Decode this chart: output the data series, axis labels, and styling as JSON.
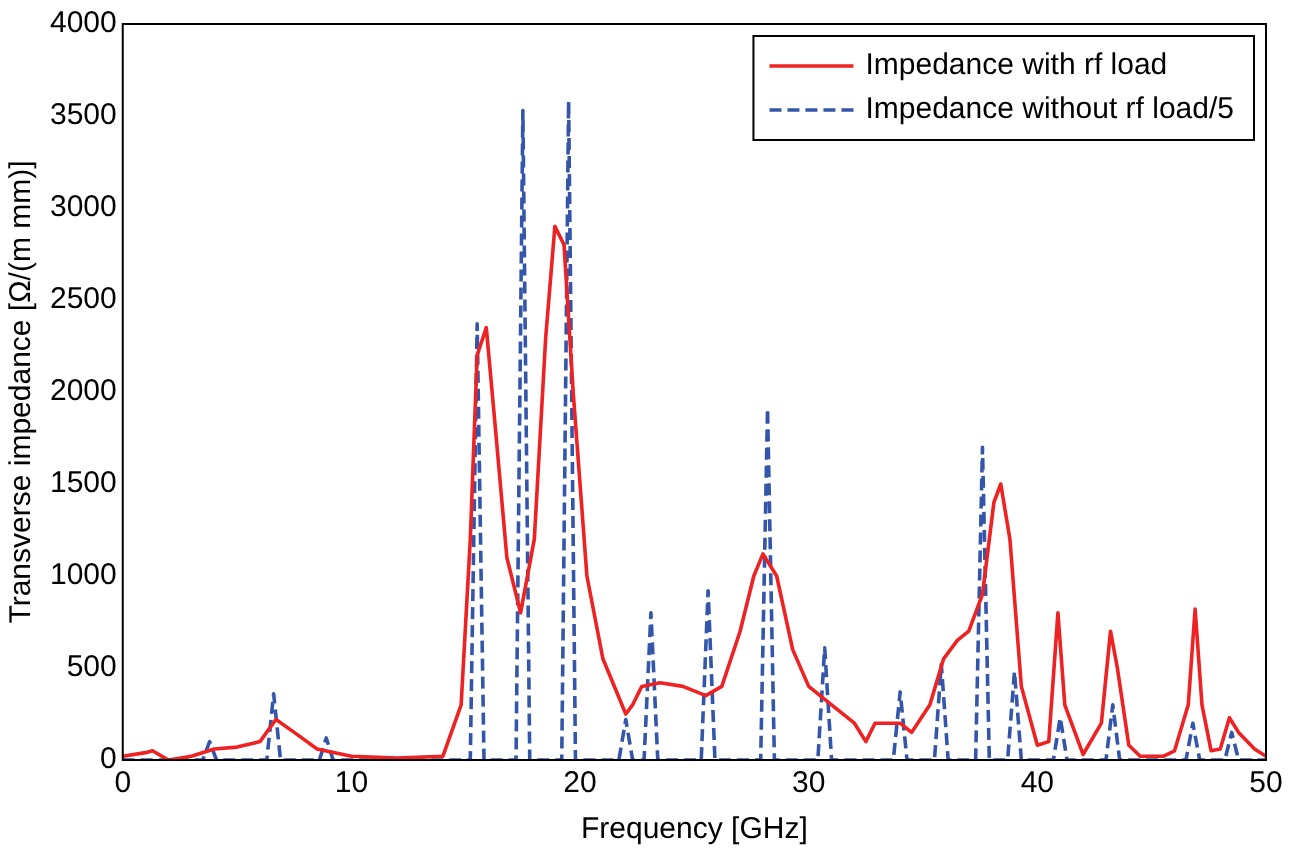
{
  "chart_data": {
    "type": "line",
    "xlabel": "Frequency [GHz]",
    "ylabel": "Transverse impedance [Ω/(m mm)]",
    "xlim": [
      0,
      50
    ],
    "xticks": [
      0,
      10,
      20,
      30,
      40,
      50
    ],
    "ylim": [
      0,
      4000
    ],
    "yticks": [
      0,
      500,
      1000,
      1500,
      2000,
      2500,
      3000,
      3500,
      4000
    ],
    "grid": false,
    "legend": "top right",
    "marker": "none",
    "series": [
      {
        "name": "Impedance with rf load",
        "color": "#ee2222",
        "line_style": "solid",
        "x": [
          0,
          1,
          1.3,
          2,
          3,
          4,
          5,
          6,
          6.7,
          7.5,
          8.5,
          10,
          12,
          14,
          14.8,
          15.2,
          15.5,
          15.9,
          16.3,
          16.8,
          17.4,
          18,
          18.5,
          18.9,
          19.3,
          19.7,
          20.3,
          21,
          22,
          22.3,
          22.7,
          23.5,
          24.5,
          25.5,
          26.2,
          27,
          27.6,
          28,
          28.6,
          29.3,
          30,
          31,
          32,
          32.5,
          32.9,
          34,
          34.5,
          35.3,
          35.9,
          36.5,
          37,
          37.6,
          38.1,
          38.4,
          38.8,
          39.3,
          40,
          40.5,
          40.9,
          41.2,
          42,
          42.8,
          43.2,
          43.5,
          44,
          44.5,
          45.5,
          46,
          46.6,
          46.9,
          47.2,
          47.6,
          48,
          48.4,
          48.8,
          49.5,
          50
        ],
        "values": [
          20,
          40,
          50,
          0,
          20,
          60,
          70,
          100,
          220,
          150,
          60,
          20,
          10,
          20,
          300,
          1200,
          2200,
          2350,
          1800,
          1100,
          800,
          1200,
          2300,
          2900,
          2800,
          2000,
          1000,
          550,
          250,
          300,
          400,
          420,
          400,
          350,
          400,
          700,
          1000,
          1120,
          1000,
          600,
          400,
          300,
          200,
          100,
          200,
          200,
          150,
          300,
          550,
          650,
          700,
          900,
          1400,
          1500,
          1200,
          400,
          80,
          100,
          800,
          300,
          30,
          200,
          700,
          500,
          80,
          20,
          20,
          50,
          300,
          820,
          300,
          50,
          60,
          230,
          150,
          60,
          20
        ]
      },
      {
        "name": "Impedance without rf load/5",
        "color": "#3355aa",
        "line_style": "dashed",
        "x": [
          0,
          3.5,
          3.8,
          4.1,
          6.3,
          6.6,
          6.9,
          8.6,
          8.9,
          9.2,
          15.2,
          15.5,
          15.8,
          17.2,
          17.5,
          17.8,
          19.2,
          19.5,
          19.8,
          21.7,
          22,
          22.3,
          22.8,
          23.1,
          23.4,
          25.3,
          25.6,
          25.9,
          27.9,
          28.2,
          28.5,
          30.4,
          30.7,
          31,
          33.7,
          34,
          34.3,
          35.5,
          35.8,
          36.1,
          37.3,
          37.6,
          37.9,
          38.7,
          39,
          39.3,
          40.7,
          41,
          41.3,
          43,
          43.3,
          43.6,
          46.5,
          46.8,
          47.1,
          48.2,
          48.5,
          48.8,
          50
        ],
        "values": [
          0,
          0,
          100,
          0,
          0,
          360,
          0,
          0,
          120,
          0,
          0,
          2370,
          0,
          0,
          3530,
          0,
          0,
          3580,
          0,
          0,
          220,
          0,
          0,
          800,
          0,
          0,
          920,
          0,
          0,
          1910,
          0,
          0,
          610,
          0,
          0,
          370,
          0,
          0,
          520,
          0,
          0,
          1700,
          0,
          0,
          480,
          0,
          0,
          230,
          0,
          0,
          300,
          0,
          0,
          200,
          0,
          0,
          150,
          0,
          0
        ]
      }
    ]
  }
}
